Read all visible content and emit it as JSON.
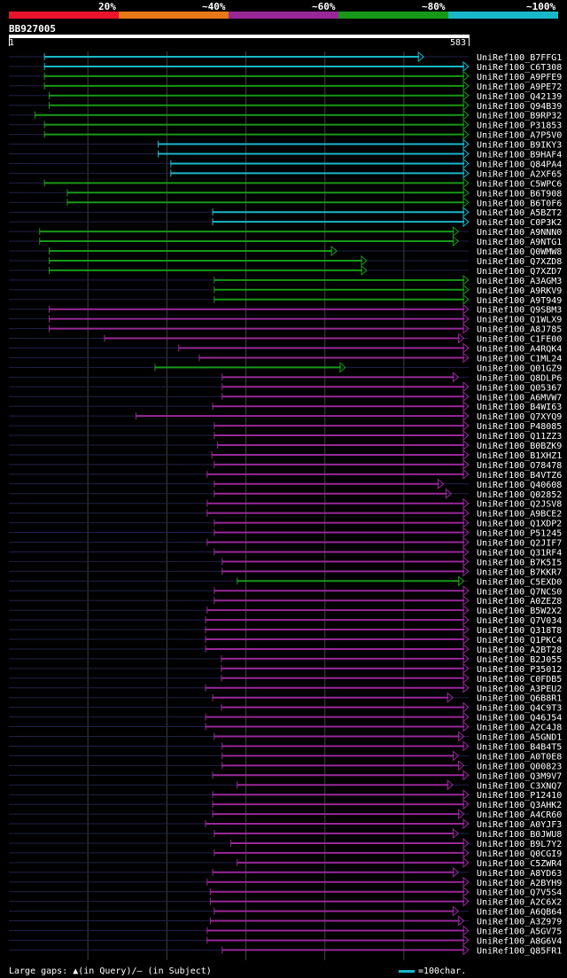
{
  "legend": {
    "segments": [
      {
        "color": "#e8142c"
      },
      {
        "color": "#e87818"
      },
      {
        "color": "#982898"
      },
      {
        "color": "#189818"
      },
      {
        "color": "#18b8c8"
      }
    ],
    "labels": [
      "20%",
      "~40%",
      "~60%",
      "~80%",
      "~100%"
    ]
  },
  "query": {
    "id": "BB927005",
    "start": "1",
    "end": "583"
  },
  "footer": {
    "gaps": "Large gaps: ▲(in Query)/– (in Subject)",
    "scale": "=100char."
  },
  "colors": {
    "cyan": "#18b8c8",
    "green": "#189818",
    "purple": "#982898"
  },
  "hits": [
    {
      "name": "UniRef100_B7FFG1",
      "color": "cyan",
      "start": 46,
      "end": 526,
      "arrowEnd": true
    },
    {
      "name": "UniRef100_C6T308",
      "color": "cyan",
      "start": 46,
      "end": 583
    },
    {
      "name": "UniRef100_A9PFE9",
      "color": "green",
      "start": 46,
      "end": 583
    },
    {
      "name": "UniRef100_A9PE72",
      "color": "green",
      "start": 46,
      "end": 583
    },
    {
      "name": "UniRef100_Q42139",
      "color": "green",
      "start": 52,
      "end": 583
    },
    {
      "name": "UniRef100_Q94B39",
      "color": "green",
      "start": 52,
      "end": 583
    },
    {
      "name": "UniRef100_B9RP32",
      "color": "green",
      "start": 34,
      "end": 583
    },
    {
      "name": "UniRef100_P31853",
      "color": "green",
      "start": 46,
      "end": 583
    },
    {
      "name": "UniRef100_A7P5V0",
      "color": "green",
      "start": 46,
      "end": 583
    },
    {
      "name": "UniRef100_B9IKY3",
      "color": "cyan",
      "start": 190,
      "end": 583
    },
    {
      "name": "UniRef100_B9HAF4",
      "color": "cyan",
      "start": 190,
      "end": 583
    },
    {
      "name": "UniRef100_Q84PA4",
      "color": "cyan",
      "start": 206,
      "end": 583
    },
    {
      "name": "UniRef100_A2XF65",
      "color": "cyan",
      "start": 206,
      "end": 583
    },
    {
      "name": "UniRef100_C5WPC6",
      "color": "green",
      "start": 46,
      "end": 583
    },
    {
      "name": "UniRef100_B6T908",
      "color": "green",
      "start": 75,
      "end": 583
    },
    {
      "name": "UniRef100_B6T0F6",
      "color": "green",
      "start": 75,
      "end": 583
    },
    {
      "name": "UniRef100_A5BZT2",
      "color": "cyan",
      "start": 259,
      "end": 583
    },
    {
      "name": "UniRef100_C0P3K2",
      "color": "cyan",
      "start": 259,
      "end": 583
    },
    {
      "name": "UniRef100_A9NNN0",
      "color": "green",
      "start": 40,
      "end": 570
    },
    {
      "name": "UniRef100_A9NTG1",
      "color": "green",
      "start": 40,
      "end": 570
    },
    {
      "name": "UniRef100_Q0WMW8",
      "color": "green",
      "start": 52,
      "end": 416
    },
    {
      "name": "UniRef100_Q7XZD8",
      "color": "green",
      "start": 52,
      "end": 454
    },
    {
      "name": "UniRef100_Q7XZD7",
      "color": "green",
      "start": 52,
      "end": 454
    },
    {
      "name": "UniRef100_A3AGM3",
      "color": "green",
      "start": 261,
      "end": 583
    },
    {
      "name": "UniRef100_A9RKV9",
      "color": "green",
      "start": 261,
      "end": 583
    },
    {
      "name": "UniRef100_A9T949",
      "color": "green",
      "start": 261,
      "end": 583
    },
    {
      "name": "UniRef100_Q9SBM3",
      "color": "purple",
      "start": 52,
      "end": 583
    },
    {
      "name": "UniRef100_Q1WLX9",
      "color": "purple",
      "start": 52,
      "end": 583
    },
    {
      "name": "UniRef100_A8J785",
      "color": "purple",
      "start": 52,
      "end": 583
    },
    {
      "name": "UniRef100_C1FE00",
      "color": "purple",
      "start": 122,
      "end": 577
    },
    {
      "name": "UniRef100_A4RQK4",
      "color": "purple",
      "start": 216,
      "end": 583
    },
    {
      "name": "UniRef100_C1ML24",
      "color": "purple",
      "start": 242,
      "end": 583
    },
    {
      "name": "UniRef100_Q01GZ9",
      "color": "green",
      "start": 186,
      "end": 427
    },
    {
      "name": "UniRef100_Q8DLP6",
      "color": "purple",
      "start": 271,
      "end": 570
    },
    {
      "name": "UniRef100_Q05367",
      "color": "purple",
      "start": 271,
      "end": 583
    },
    {
      "name": "UniRef100_A6MVW7",
      "color": "purple",
      "start": 271,
      "end": 583
    },
    {
      "name": "UniRef100_B4WI63",
      "color": "purple",
      "start": 259,
      "end": 583
    },
    {
      "name": "UniRef100_Q7XYQ9",
      "color": "purple",
      "start": 162,
      "end": 583
    },
    {
      "name": "UniRef100_P48085",
      "color": "purple",
      "start": 261,
      "end": 583
    },
    {
      "name": "UniRef100_Q11ZZ3",
      "color": "purple",
      "start": 261,
      "end": 583
    },
    {
      "name": "UniRef100_B0BZK9",
      "color": "purple",
      "start": 265,
      "end": 583
    },
    {
      "name": "UniRef100_B1XHZ1",
      "color": "purple",
      "start": 258,
      "end": 583
    },
    {
      "name": "UniRef100_O78478",
      "color": "purple",
      "start": 261,
      "end": 583
    },
    {
      "name": "UniRef100_B4VTZ6",
      "color": "purple",
      "start": 252,
      "end": 583
    },
    {
      "name": "UniRef100_Q40608",
      "color": "purple",
      "start": 261,
      "end": 551
    },
    {
      "name": "UniRef100_Q02852",
      "color": "purple",
      "start": 261,
      "end": 561
    },
    {
      "name": "UniRef100_Q2JSV8",
      "color": "purple",
      "start": 252,
      "end": 583
    },
    {
      "name": "UniRef100_A9BCE2",
      "color": "purple",
      "start": 252,
      "end": 583
    },
    {
      "name": "UniRef100_Q1XDP2",
      "color": "purple",
      "start": 261,
      "end": 583
    },
    {
      "name": "UniRef100_P51245",
      "color": "purple",
      "start": 261,
      "end": 583
    },
    {
      "name": "UniRef100_Q2JIF7",
      "color": "purple",
      "start": 252,
      "end": 583
    },
    {
      "name": "UniRef100_Q31RF4",
      "color": "purple",
      "start": 261,
      "end": 583
    },
    {
      "name": "UniRef100_B7K5I5",
      "color": "purple",
      "start": 271,
      "end": 583
    },
    {
      "name": "UniRef100_B7KKR7",
      "color": "purple",
      "start": 271,
      "end": 583
    },
    {
      "name": "UniRef100_C5EXD0",
      "color": "green",
      "start": 290,
      "end": 577
    },
    {
      "name": "UniRef100_Q7NCS0",
      "color": "purple",
      "start": 261,
      "end": 583
    },
    {
      "name": "UniRef100_A0ZEZ8",
      "color": "purple",
      "start": 261,
      "end": 583
    },
    {
      "name": "UniRef100_B5W2X2",
      "color": "purple",
      "start": 252,
      "end": 583
    },
    {
      "name": "UniRef100_Q7V034",
      "color": "purple",
      "start": 250,
      "end": 583
    },
    {
      "name": "UniRef100_Q318T8",
      "color": "purple",
      "start": 250,
      "end": 583
    },
    {
      "name": "UniRef100_Q1PKC4",
      "color": "purple",
      "start": 250,
      "end": 583
    },
    {
      "name": "UniRef100_A2BT28",
      "color": "purple",
      "start": 250,
      "end": 583
    },
    {
      "name": "UniRef100_B2J055",
      "color": "purple",
      "start": 270,
      "end": 583
    },
    {
      "name": "UniRef100_P35012",
      "color": "purple",
      "start": 270,
      "end": 583
    },
    {
      "name": "UniRef100_C0FDB5",
      "color": "purple",
      "start": 270,
      "end": 583
    },
    {
      "name": "UniRef100_A3PEU2",
      "color": "purple",
      "start": 250,
      "end": 583
    },
    {
      "name": "UniRef100_Q6B8R1",
      "color": "purple",
      "start": 259,
      "end": 563
    },
    {
      "name": "UniRef100_Q4C9T3",
      "color": "purple",
      "start": 270,
      "end": 583
    },
    {
      "name": "UniRef100_Q46J54",
      "color": "purple",
      "start": 250,
      "end": 583
    },
    {
      "name": "UniRef100_A2C4J8",
      "color": "purple",
      "start": 250,
      "end": 583
    },
    {
      "name": "UniRef100_A5GND1",
      "color": "purple",
      "start": 261,
      "end": 577
    },
    {
      "name": "UniRef100_B4B4T5",
      "color": "purple",
      "start": 271,
      "end": 583
    },
    {
      "name": "UniRef100_A0T0E8",
      "color": "purple",
      "start": 271,
      "end": 570
    },
    {
      "name": "UniRef100_Q00823",
      "color": "purple",
      "start": 271,
      "end": 577
    },
    {
      "name": "UniRef100_Q3M9V7",
      "color": "purple",
      "start": 259,
      "end": 583
    },
    {
      "name": "UniRef100_C3XNQ7",
      "color": "purple",
      "start": 290,
      "end": 563
    },
    {
      "name": "UniRef100_P12410",
      "color": "purple",
      "start": 259,
      "end": 583
    },
    {
      "name": "UniRef100_Q3AHK2",
      "color": "purple",
      "start": 259,
      "end": 583
    },
    {
      "name": "UniRef100_A4CR60",
      "color": "purple",
      "start": 259,
      "end": 577
    },
    {
      "name": "UniRef100_A0YJF3",
      "color": "purple",
      "start": 250,
      "end": 583
    },
    {
      "name": "UniRef100_B0JWU8",
      "color": "purple",
      "start": 261,
      "end": 570
    },
    {
      "name": "UniRef100_B9L7Y2",
      "color": "purple",
      "start": 282,
      "end": 583
    },
    {
      "name": "UniRef100_Q0CGI9",
      "color": "purple",
      "start": 261,
      "end": 583
    },
    {
      "name": "UniRef100_C5ZWR4",
      "color": "purple",
      "start": 290,
      "end": 583
    },
    {
      "name": "UniRef100_A8YD63",
      "color": "purple",
      "start": 259,
      "end": 570
    },
    {
      "name": "UniRef100_A2BYH9",
      "color": "purple",
      "start": 252,
      "end": 583
    },
    {
      "name": "UniRef100_Q7V5S4",
      "color": "purple",
      "start": 256,
      "end": 583
    },
    {
      "name": "UniRef100_A2C6X2",
      "color": "purple",
      "start": 256,
      "end": 583
    },
    {
      "name": "UniRef100_A6QB64",
      "color": "purple",
      "start": 261,
      "end": 570
    },
    {
      "name": "UniRef100_A3Z979",
      "color": "purple",
      "start": 256,
      "end": 577
    },
    {
      "name": "UniRef100_A5GV75",
      "color": "purple",
      "start": 252,
      "end": 583
    },
    {
      "name": "UniRef100_A8G6V4",
      "color": "purple",
      "start": 252,
      "end": 583
    },
    {
      "name": "UniRef100_Q85FR1",
      "color": "purple",
      "start": 271,
      "end": 583
    }
  ]
}
